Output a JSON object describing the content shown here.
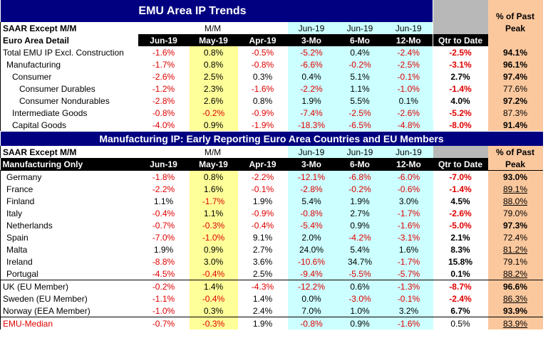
{
  "top": {
    "title": "EMU Area IP Trends",
    "peak_header_line1": "% of Past",
    "peak_header_line2": "Peak",
    "row1_label": "SAAR Except M/M",
    "mm_label": "M/M",
    "jun19_a": "Jun-19",
    "jun19_b": "Jun-19",
    "jun19_c": "Jun-19",
    "row2_label": "Euro Area Detail",
    "col_headers": [
      "Jun-19",
      "May-19",
      "Apr-19",
      "3-Mo",
      "6-Mo",
      "12-Mo",
      "Qtr to Date"
    ],
    "rows": [
      {
        "label": "Total EMU IP Excl. Construction",
        "values": [
          "-1.6%",
          "0.8%",
          "-0.5%",
          "-5.2%",
          "0.4%",
          "-2.4%",
          "-2.5%"
        ],
        "peak": "94.1%"
      },
      {
        "label": "Manufacturing",
        "values": [
          "-1.7%",
          "0.8%",
          "-0.8%",
          "-6.6%",
          "-0.2%",
          "-2.5%",
          "-3.1%"
        ],
        "peak": "96.1%"
      },
      {
        "label": "Consumer",
        "values": [
          "-2.6%",
          "2.5%",
          "0.3%",
          "0.4%",
          "5.1%",
          "-0.1%",
          "2.7%"
        ],
        "peak": "97.4%"
      },
      {
        "label": "Consumer Durables",
        "values": [
          "-1.2%",
          "2.3%",
          "-1.6%",
          "-2.2%",
          "1.1%",
          "-1.0%",
          "-1.4%"
        ],
        "peak": "77.6%"
      },
      {
        "label": "Consumer Nondurables",
        "values": [
          "-2.8%",
          "2.6%",
          "0.8%",
          "1.9%",
          "5.5%",
          "0.1%",
          "4.0%"
        ],
        "peak": "97.2%"
      },
      {
        "label": "Intermediate Goods",
        "values": [
          "-0.8%",
          "-0.2%",
          "-0.9%",
          "-7.4%",
          "-2.5%",
          "-2.6%",
          "-5.2%"
        ],
        "peak": "87.3%"
      },
      {
        "label": "Capital Goods",
        "values": [
          "-4.0%",
          "0.9%",
          "-1.9%",
          "-18.3%",
          "-6.5%",
          "-4.8%",
          "-8.0%"
        ],
        "peak": "91.4%"
      }
    ]
  },
  "bottom": {
    "title": "Manufacturing IP: Early Reporting Euro Area Countries and EU Members",
    "peak_header_line1": "% of Past",
    "peak_header_line2": "Peak",
    "row1_label": "SAAR Except M/M",
    "mm_label": "M/M",
    "jun19_a": "Jun-19",
    "jun19_b": "Jun-19",
    "jun19_c": "Jun-19",
    "row2_label": "Manufacturing Only",
    "col_headers": [
      "Jun-19",
      "May-19",
      "Apr-19",
      "3-Mo",
      "6-Mo",
      "12-Mo",
      "Qtr to Date"
    ],
    "countries": [
      {
        "label": "Germany",
        "values": [
          "-1.8%",
          "0.8%",
          "-2.2%",
          "-12.1%",
          "-6.8%",
          "-6.0%",
          "-7.0%"
        ],
        "peak": "93.0%"
      },
      {
        "label": "France",
        "values": [
          "-2.2%",
          "1.6%",
          "-0.1%",
          "-2.8%",
          "-0.2%",
          "-0.6%",
          "-1.4%"
        ],
        "peak": "89.1%"
      },
      {
        "label": "Finland",
        "values": [
          "1.1%",
          "-1.7%",
          "1.9%",
          "5.4%",
          "1.9%",
          "3.0%",
          "4.5%"
        ],
        "peak": "88.0%"
      },
      {
        "label": "Italy",
        "values": [
          "-0.4%",
          "1.1%",
          "-0.9%",
          "-0.8%",
          "2.7%",
          "-1.7%",
          "-2.6%"
        ],
        "peak": "79.0%"
      },
      {
        "label": "Netherlands",
        "values": [
          "-0.7%",
          "-0.3%",
          "-0.4%",
          "-5.4%",
          "0.9%",
          "-1.6%",
          "-5.0%"
        ],
        "peak": "97.3%"
      },
      {
        "label": "Spain",
        "values": [
          "-7.0%",
          "-1.0%",
          "9.1%",
          "2.0%",
          "-4.2%",
          "-3.1%",
          "2.1%"
        ],
        "peak": "72.4%"
      },
      {
        "label": "Malta",
        "values": [
          "1.9%",
          "0.9%",
          "2.7%",
          "24.0%",
          "5.4%",
          "1.6%",
          "8.3%"
        ],
        "peak": "81.2%"
      },
      {
        "label": "Ireland",
        "values": [
          "-8.8%",
          "3.0%",
          "3.6%",
          "-10.6%",
          "34.7%",
          "-1.7%",
          "15.8%"
        ],
        "peak": "79.1%"
      },
      {
        "label": "Portugal",
        "values": [
          "-4.5%",
          "-0.4%",
          "2.5%",
          "-9.4%",
          "-5.5%",
          "-5.7%",
          "0.1%"
        ],
        "peak": "88.2%"
      }
    ],
    "eu_members": [
      {
        "label": "UK (EU Member)",
        "values": [
          "-0.2%",
          "1.4%",
          "-4.3%",
          "-12.2%",
          "0.6%",
          "-1.3%",
          "-8.7%"
        ],
        "peak": "96.6%"
      },
      {
        "label": "Sweden (EU Member)",
        "values": [
          "-1.1%",
          "-0.4%",
          "1.4%",
          "0.0%",
          "-3.0%",
          "-0.1%",
          "-2.4%"
        ],
        "peak": "86.3%"
      },
      {
        "label": "Norway (EEA Member)",
        "values": [
          "-1.0%",
          "0.3%",
          "2.4%",
          "7.0%",
          "1.0%",
          "3.2%",
          "6.7%"
        ],
        "peak": "93.9%"
      }
    ],
    "median": {
      "label": "EMU-Median",
      "values": [
        "-0.7%",
        "-0.3%",
        "1.9%",
        "-0.8%",
        "0.9%",
        "-1.6%",
        "0.5%"
      ],
      "peak": "83.9%"
    }
  }
}
